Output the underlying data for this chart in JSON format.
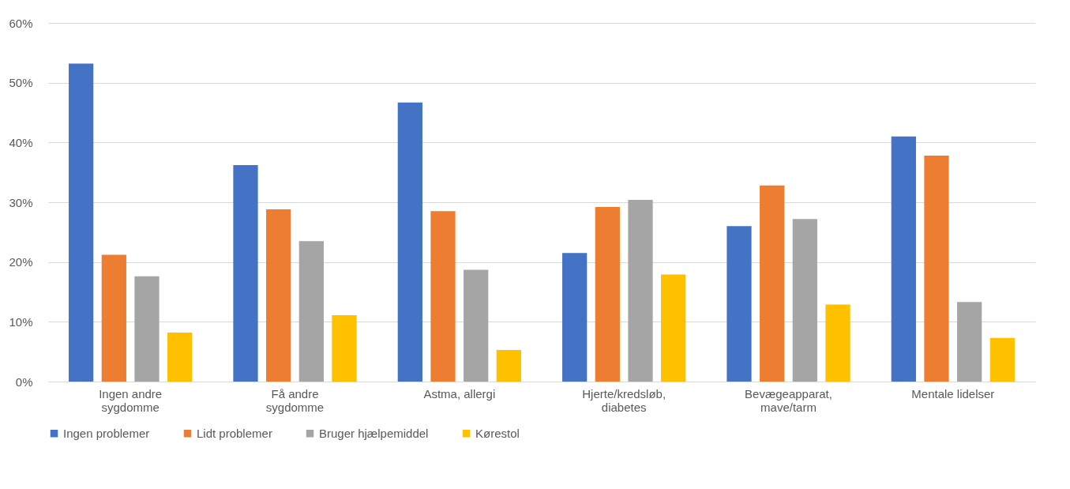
{
  "chart_data": {
    "type": "bar",
    "categories": [
      "Ingen andre sygdomme",
      "Få andre sygdomme",
      "Astma, allergi",
      "Hjerte/kredsløb, diabetes",
      "Bevægeapparat, mave/tarm",
      "Mentale lidelser"
    ],
    "series": [
      {
        "name": "Ingen problemer",
        "color": "#4472c4",
        "values": [
          53.2,
          36.2,
          46.7,
          21.5,
          26.0,
          41.0
        ]
      },
      {
        "name": "Lidt problemer",
        "color": "#ed7d31",
        "values": [
          21.2,
          28.8,
          28.5,
          29.2,
          32.8,
          37.8
        ]
      },
      {
        "name": "Bruger hjælpemiddel",
        "color": "#a5a5a5",
        "values": [
          17.6,
          23.5,
          18.7,
          30.4,
          27.2,
          13.3
        ]
      },
      {
        "name": "Kørestol",
        "color": "#ffc000",
        "values": [
          8.2,
          11.1,
          5.3,
          17.9,
          12.9,
          7.3
        ]
      }
    ],
    "ylim": [
      0,
      60
    ],
    "yticks": [
      {
        "value": 0,
        "label": "0%"
      },
      {
        "value": 10,
        "label": "10%"
      },
      {
        "value": 20,
        "label": "20%"
      },
      {
        "value": 30,
        "label": "30%"
      },
      {
        "value": 40,
        "label": "40%"
      },
      {
        "value": 50,
        "label": "50%"
      },
      {
        "value": 60,
        "label": "60%"
      }
    ],
    "grid": "y",
    "legend": "bottom"
  }
}
